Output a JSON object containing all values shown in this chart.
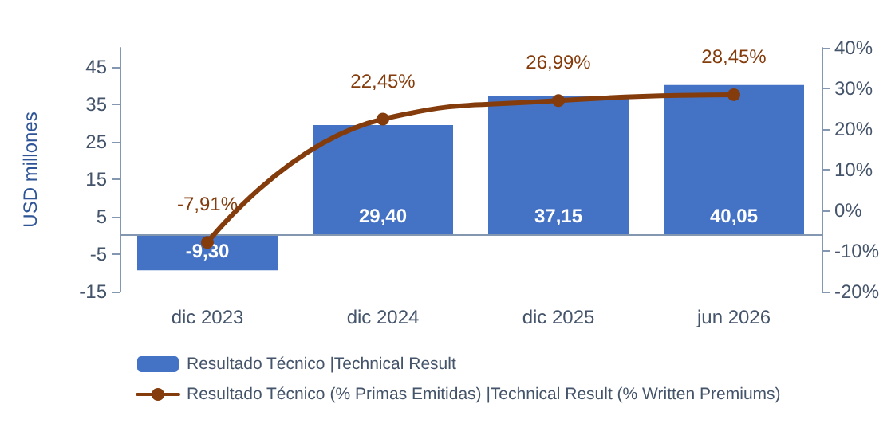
{
  "chart_data": {
    "type": "bar",
    "ylabel": "USD millones",
    "categories": [
      "dic 2023",
      "dic 2024",
      "dic 2025",
      "jun 2026"
    ],
    "series": [
      {
        "name": "Resultado Técnico |Technical Result",
        "color": "#4472c4",
        "values": [
          -9.3,
          29.4,
          37.15,
          40.05
        ],
        "value_labels": [
          "-9,30",
          "29,40",
          "37,15",
          "40,05"
        ]
      },
      {
        "name": "Resultado Técnico (% Primas Emitidas) |Technical Result (% Written Premiums)",
        "type": "line",
        "axis": "y2",
        "color": "#843c0c",
        "marker": "circle",
        "values": [
          -7.91,
          22.45,
          26.99,
          28.45
        ],
        "value_labels": [
          "-7,91%",
          "22,45%",
          "26,99%",
          "28,45%"
        ]
      }
    ],
    "ylim": [
      -15,
      50
    ],
    "yticks": [
      -15,
      -5,
      5,
      15,
      25,
      35,
      45
    ],
    "y2lim": [
      -20,
      40
    ],
    "y2ticks": [
      {
        "value": -20,
        "label": "-20%"
      },
      {
        "value": -10,
        "label": "-10%"
      },
      {
        "value": 0,
        "label": "0%"
      },
      {
        "value": 10,
        "label": "10%"
      },
      {
        "value": 20,
        "label": "20%"
      },
      {
        "value": 30,
        "label": "30%"
      },
      {
        "value": 40,
        "label": "40%"
      }
    ],
    "ref_lines": [
      {
        "axis": "y",
        "value": 0,
        "color": "#8497b0"
      }
    ],
    "legend": "bottom",
    "grid": false
  }
}
